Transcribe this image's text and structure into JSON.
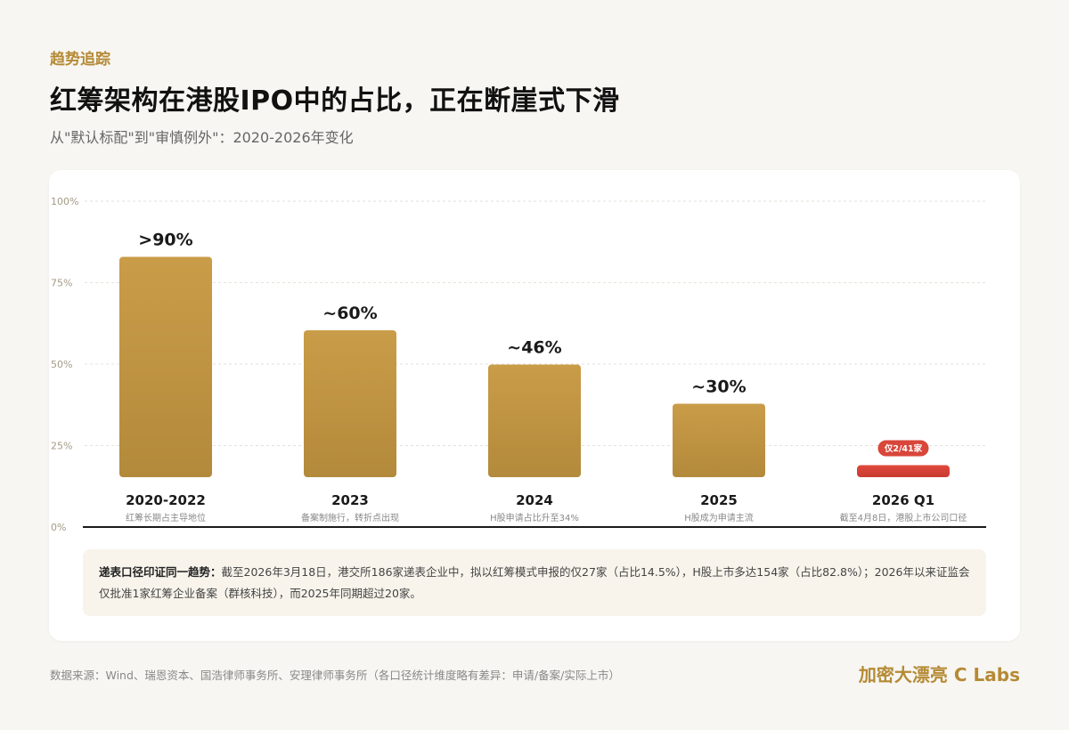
{
  "header": {
    "eyebrow": "趋势追踪",
    "title": "红筹架构在港股IPO中的占比，正在断崖式下滑",
    "subtitle": "从\"默认标配\"到\"审慎例外\"：2020-2026年变化"
  },
  "chart_data": {
    "type": "bar",
    "categories": [
      "2020-2022",
      "2023",
      "2024",
      "2025",
      "2026 Q1"
    ],
    "values": [
      90,
      60,
      46,
      30,
      4.9
    ],
    "value_labels": [
      ">90%",
      "~60%",
      "~46%",
      "~30%",
      ""
    ],
    "descriptions": [
      "红筹长期占主导地位",
      "备案制施行，转折点出现",
      "H股申请占比升至34%",
      "H股成为申请主流",
      "截至4月8日，港股上市公司口径"
    ],
    "badge": "仅2/41家",
    "y_ticks": [
      "100%",
      "75%",
      "50%",
      "25%",
      "0%"
    ],
    "ylim": [
      0,
      100
    ],
    "grid": true,
    "colors": {
      "bar": "#c49a46",
      "bar_dark": "#b0883a",
      "highlight": "#d9463a"
    }
  },
  "note": {
    "head": "递表口径印证同一趋势：",
    "body": "截至2026年3月18日，港交所186家递表企业中，拟以红筹模式申报的仅27家（占比14.5%），H股上市多达154家（占比82.8%）；2026年以来证监会仅批准1家红筹企业备案（群核科技），而2025年同期超过20家。"
  },
  "footer": {
    "source": "数据来源：Wind、瑞恩资本、国浩律师事务所、安理律师事务所（各口径统计维度略有差异：申请/备案/实际上市）",
    "brand": "加密大漂亮 C Labs"
  }
}
